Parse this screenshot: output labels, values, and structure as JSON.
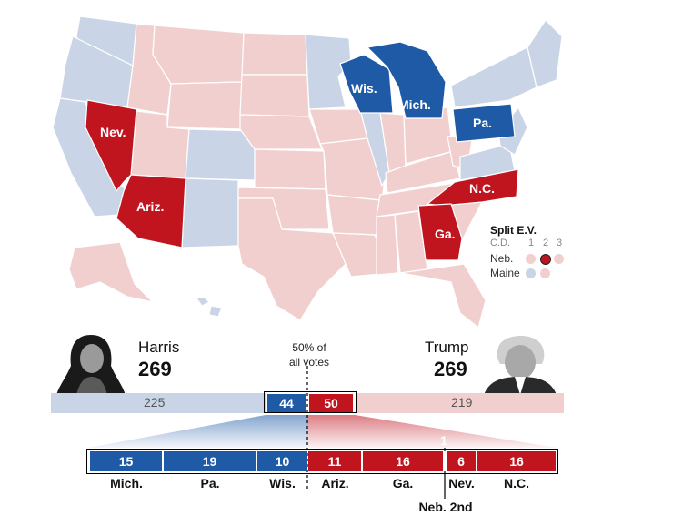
{
  "colors": {
    "dem_strong": "#1f5aa6",
    "rep_strong": "#c0141f",
    "dem_light": "#c9d5e6",
    "rep_light": "#f2cfcf",
    "neutral_line": "#000000"
  },
  "map": {
    "state_labels": [
      {
        "id": "wis",
        "text": "Wis."
      },
      {
        "id": "mich",
        "text": "Mich."
      },
      {
        "id": "pa",
        "text": "Pa."
      },
      {
        "id": "nev",
        "text": "Nev."
      },
      {
        "id": "ariz",
        "text": "Ariz."
      },
      {
        "id": "nc",
        "text": "N.C."
      },
      {
        "id": "ga",
        "text": "Ga."
      }
    ]
  },
  "legend": {
    "title": "Split E.V.",
    "cd_label": "C.D.",
    "cd_numbers": [
      "1",
      "2",
      "3"
    ],
    "rows": [
      {
        "label": "Neb.",
        "dots": [
          "#f2cfcf",
          "#c0141f",
          "#f2cfcf"
        ]
      },
      {
        "label": "Maine",
        "dots": [
          "#c9d5e6",
          "#f2cfcf"
        ]
      }
    ]
  },
  "candidates": {
    "left": {
      "name": "Harris",
      "electoral_votes": "269"
    },
    "right": {
      "name": "Trump",
      "electoral_votes": "269"
    }
  },
  "center_note": {
    "line1": "50% of",
    "line2": "all votes"
  },
  "bar": {
    "dem_safe": "225",
    "dem_battleground": "44",
    "rep_battleground": "50",
    "rep_safe": "219"
  },
  "battleground_breakdown": [
    {
      "state": "Mich.",
      "votes": "15",
      "party": "dem"
    },
    {
      "state": "Pa.",
      "votes": "19",
      "party": "dem"
    },
    {
      "state": "Wis.",
      "votes": "10",
      "party": "dem"
    },
    {
      "state": "Ariz.",
      "votes": "11",
      "party": "rep"
    },
    {
      "state": "Ga.",
      "votes": "16",
      "party": "rep"
    },
    {
      "state": "Neb. 2nd",
      "votes": "1",
      "party": "rep"
    },
    {
      "state": "Nev.",
      "votes": "6",
      "party": "rep"
    },
    {
      "state": "N.C.",
      "votes": "16",
      "party": "rep"
    }
  ]
}
